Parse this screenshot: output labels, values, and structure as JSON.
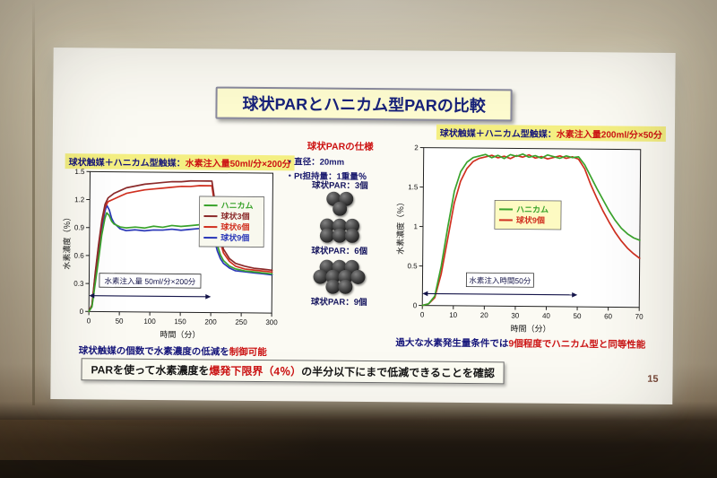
{
  "slide": {
    "title": "球状PARとハニカム型PARの比較",
    "spec": {
      "heading": "球状PARの仕様",
      "items": [
        "・直径：20mm",
        "・Pt担持量：1重量％"
      ]
    },
    "sphere_groups": [
      {
        "label": "球状PAR：3個",
        "count": 3
      },
      {
        "label": "球状PAR：6個",
        "count": 6
      },
      {
        "label": "球状PAR：9個",
        "count": 9
      }
    ],
    "left_caption": {
      "normal": "球状触媒の個数で水素濃度の低減を",
      "emphasis": "制御可能"
    },
    "right_caption": {
      "normal": "過大な水素発生量条件では",
      "emphasis": "9個程度でハニカム型と同等性能"
    },
    "bottom_note": {
      "pre": "PARを使って水素濃度を",
      "emphasis": "爆発下限界（4％）",
      "post": "の半分以下にまで低減できることを確認"
    },
    "page_number": "15"
  },
  "colors": {
    "navy_text": "#15157a",
    "red_text": "#cc1414",
    "yellow_highlight": "#f4ef82",
    "title_background": "#fefcd0",
    "honeycomb_green": "#3aa32c",
    "sphere3_maroon": "#8b2a2a",
    "sphere6_red": "#d03020",
    "sphere9_blue": "#2b38b8"
  },
  "chart_data": [
    {
      "type": "line",
      "title": "球状触媒＋ハニカム型触媒：水素注入量50ml/分×200分",
      "condition": {
        "prefix": "球状触媒＋ハニカム型触媒：",
        "amount": "水素注入量50ml/分×200分"
      },
      "xlabel": "時間（分）",
      "ylabel": "水素濃度（％）",
      "xlim": [
        0,
        300
      ],
      "ylim": [
        0,
        1.5
      ],
      "xticks": [
        0,
        50,
        100,
        150,
        200,
        250,
        300
      ],
      "yticks": [
        0,
        0.3,
        0.6,
        0.9,
        1.2,
        1.5
      ],
      "grid": false,
      "legend": {
        "position": "middle-right",
        "fx": 0.6,
        "fy": 0.17,
        "w": 72,
        "bg": "#f8f8ee"
      },
      "annotation": {
        "text": "水素注入量 50ml/分×200分",
        "x_start": 0,
        "x_end": 200,
        "arrow_y": 0.17,
        "text_y": 0.31
      },
      "series": [
        {
          "name": "ハニカム",
          "color": "#3aa32c",
          "points": [
            [
              0,
              0
            ],
            [
              5,
              0.05
            ],
            [
              10,
              0.3
            ],
            [
              15,
              0.55
            ],
            [
              20,
              0.82
            ],
            [
              25,
              1.0
            ],
            [
              28,
              1.06
            ],
            [
              32,
              1.03
            ],
            [
              36,
              0.97
            ],
            [
              40,
              0.94
            ],
            [
              50,
              0.91
            ],
            [
              60,
              0.9
            ],
            [
              75,
              0.91
            ],
            [
              90,
              0.9
            ],
            [
              105,
              0.92
            ],
            [
              120,
              0.91
            ],
            [
              135,
              0.93
            ],
            [
              150,
              0.92
            ],
            [
              165,
              0.93
            ],
            [
              180,
              0.94
            ],
            [
              195,
              0.95
            ],
            [
              200,
              0.95
            ],
            [
              205,
              0.84
            ],
            [
              210,
              0.72
            ],
            [
              215,
              0.62
            ],
            [
              220,
              0.56
            ],
            [
              230,
              0.5
            ],
            [
              240,
              0.47
            ],
            [
              255,
              0.45
            ],
            [
              270,
              0.44
            ],
            [
              285,
              0.43
            ],
            [
              300,
              0.42
            ]
          ]
        },
        {
          "name": "球状3個",
          "color": "#8b2a2a",
          "points": [
            [
              0,
              0
            ],
            [
              5,
              0.07
            ],
            [
              10,
              0.42
            ],
            [
              15,
              0.72
            ],
            [
              20,
              0.98
            ],
            [
              25,
              1.15
            ],
            [
              30,
              1.22
            ],
            [
              40,
              1.27
            ],
            [
              50,
              1.3
            ],
            [
              60,
              1.33
            ],
            [
              75,
              1.35
            ],
            [
              90,
              1.37
            ],
            [
              105,
              1.38
            ],
            [
              120,
              1.39
            ],
            [
              135,
              1.4
            ],
            [
              150,
              1.4
            ],
            [
              165,
              1.41
            ],
            [
              180,
              1.41
            ],
            [
              195,
              1.41
            ],
            [
              200,
              1.41
            ],
            [
              205,
              1.2
            ],
            [
              210,
              0.98
            ],
            [
              215,
              0.8
            ],
            [
              220,
              0.68
            ],
            [
              230,
              0.58
            ],
            [
              240,
              0.53
            ],
            [
              255,
              0.5
            ],
            [
              270,
              0.48
            ],
            [
              285,
              0.47
            ],
            [
              300,
              0.46
            ]
          ]
        },
        {
          "name": "球状6個",
          "color": "#d03020",
          "points": [
            [
              0,
              0
            ],
            [
              5,
              0.07
            ],
            [
              10,
              0.4
            ],
            [
              15,
              0.7
            ],
            [
              20,
              0.95
            ],
            [
              25,
              1.12
            ],
            [
              30,
              1.18
            ],
            [
              40,
              1.21
            ],
            [
              50,
              1.24
            ],
            [
              60,
              1.27
            ],
            [
              75,
              1.29
            ],
            [
              90,
              1.31
            ],
            [
              105,
              1.32
            ],
            [
              120,
              1.33
            ],
            [
              135,
              1.34
            ],
            [
              150,
              1.35
            ],
            [
              165,
              1.35
            ],
            [
              180,
              1.36
            ],
            [
              195,
              1.36
            ],
            [
              200,
              1.36
            ],
            [
              205,
              1.15
            ],
            [
              210,
              0.92
            ],
            [
              215,
              0.75
            ],
            [
              220,
              0.64
            ],
            [
              230,
              0.55
            ],
            [
              240,
              0.5
            ],
            [
              255,
              0.47
            ],
            [
              270,
              0.46
            ],
            [
              285,
              0.45
            ],
            [
              300,
              0.44
            ]
          ]
        },
        {
          "name": "球状9個",
          "color": "#2b38b8",
          "points": [
            [
              0,
              0
            ],
            [
              5,
              0.06
            ],
            [
              10,
              0.35
            ],
            [
              15,
              0.62
            ],
            [
              20,
              0.88
            ],
            [
              25,
              1.08
            ],
            [
              28,
              1.14
            ],
            [
              32,
              1.09
            ],
            [
              36,
              1.0
            ],
            [
              40,
              0.95
            ],
            [
              50,
              0.89
            ],
            [
              60,
              0.87
            ],
            [
              75,
              0.88
            ],
            [
              90,
              0.87
            ],
            [
              105,
              0.88
            ],
            [
              120,
              0.88
            ],
            [
              135,
              0.89
            ],
            [
              150,
              0.88
            ],
            [
              165,
              0.89
            ],
            [
              180,
              0.9
            ],
            [
              195,
              0.9
            ],
            [
              200,
              0.9
            ],
            [
              205,
              0.78
            ],
            [
              210,
              0.66
            ],
            [
              215,
              0.58
            ],
            [
              220,
              0.53
            ],
            [
              230,
              0.48
            ],
            [
              240,
              0.45
            ],
            [
              255,
              0.44
            ],
            [
              270,
              0.43
            ],
            [
              285,
              0.42
            ],
            [
              300,
              0.41
            ]
          ]
        }
      ]
    },
    {
      "type": "line",
      "title": "球状触媒＋ハニカム型触媒：水素注入量200ml/分×50分",
      "condition": {
        "prefix": "球状触媒＋ハニカム型触媒：",
        "amount": "水素注入量200ml/分×50分"
      },
      "xlabel": "時間（分）",
      "ylabel": "水素濃度（％）",
      "xlim": [
        0,
        70
      ],
      "ylim": [
        0,
        2
      ],
      "xticks": [
        0,
        10,
        20,
        30,
        40,
        50,
        60,
        70
      ],
      "yticks": [
        0,
        0.5,
        1,
        1.5,
        2
      ],
      "grid": false,
      "legend": {
        "position": "center",
        "fx": 0.33,
        "fy": 0.33,
        "w": 74,
        "bg": "#fdfac2"
      },
      "annotation": {
        "text": "水素注入時間50分",
        "x_start": 0,
        "x_end": 50,
        "arrow_y": 0.15,
        "text_y": 0.3
      },
      "series": [
        {
          "name": "ハニカム",
          "color": "#3aa32c",
          "points": [
            [
              0,
              0
            ],
            [
              2,
              0.02
            ],
            [
              4,
              0.12
            ],
            [
              6,
              0.5
            ],
            [
              8,
              1.0
            ],
            [
              10,
              1.45
            ],
            [
              12,
              1.7
            ],
            [
              14,
              1.82
            ],
            [
              16,
              1.88
            ],
            [
              18,
              1.9
            ],
            [
              20,
              1.92
            ],
            [
              22,
              1.88
            ],
            [
              24,
              1.91
            ],
            [
              26,
              1.87
            ],
            [
              28,
              1.92
            ],
            [
              30,
              1.9
            ],
            [
              32,
              1.93
            ],
            [
              34,
              1.89
            ],
            [
              36,
              1.91
            ],
            [
              38,
              1.88
            ],
            [
              40,
              1.92
            ],
            [
              42,
              1.9
            ],
            [
              44,
              1.88
            ],
            [
              46,
              1.91
            ],
            [
              48,
              1.89
            ],
            [
              50,
              1.9
            ],
            [
              52,
              1.8
            ],
            [
              54,
              1.65
            ],
            [
              56,
              1.5
            ],
            [
              58,
              1.36
            ],
            [
              60,
              1.22
            ],
            [
              62,
              1.1
            ],
            [
              64,
              1.0
            ],
            [
              66,
              0.93
            ],
            [
              68,
              0.88
            ],
            [
              70,
              0.85
            ]
          ]
        },
        {
          "name": "球状9個",
          "color": "#d03020",
          "points": [
            [
              0,
              0
            ],
            [
              2,
              0.02
            ],
            [
              4,
              0.1
            ],
            [
              6,
              0.4
            ],
            [
              8,
              0.85
            ],
            [
              10,
              1.3
            ],
            [
              12,
              1.58
            ],
            [
              14,
              1.74
            ],
            [
              16,
              1.83
            ],
            [
              18,
              1.87
            ],
            [
              20,
              1.89
            ],
            [
              22,
              1.91
            ],
            [
              24,
              1.88
            ],
            [
              26,
              1.9
            ],
            [
              28,
              1.87
            ],
            [
              30,
              1.91
            ],
            [
              32,
              1.89
            ],
            [
              34,
              1.92
            ],
            [
              36,
              1.88
            ],
            [
              38,
              1.9
            ],
            [
              40,
              1.87
            ],
            [
              42,
              1.89
            ],
            [
              44,
              1.91
            ],
            [
              46,
              1.88
            ],
            [
              48,
              1.9
            ],
            [
              50,
              1.87
            ],
            [
              52,
              1.75
            ],
            [
              54,
              1.55
            ],
            [
              56,
              1.38
            ],
            [
              58,
              1.22
            ],
            [
              60,
              1.08
            ],
            [
              62,
              0.95
            ],
            [
              64,
              0.84
            ],
            [
              66,
              0.75
            ],
            [
              68,
              0.68
            ],
            [
              70,
              0.62
            ]
          ]
        }
      ]
    }
  ]
}
